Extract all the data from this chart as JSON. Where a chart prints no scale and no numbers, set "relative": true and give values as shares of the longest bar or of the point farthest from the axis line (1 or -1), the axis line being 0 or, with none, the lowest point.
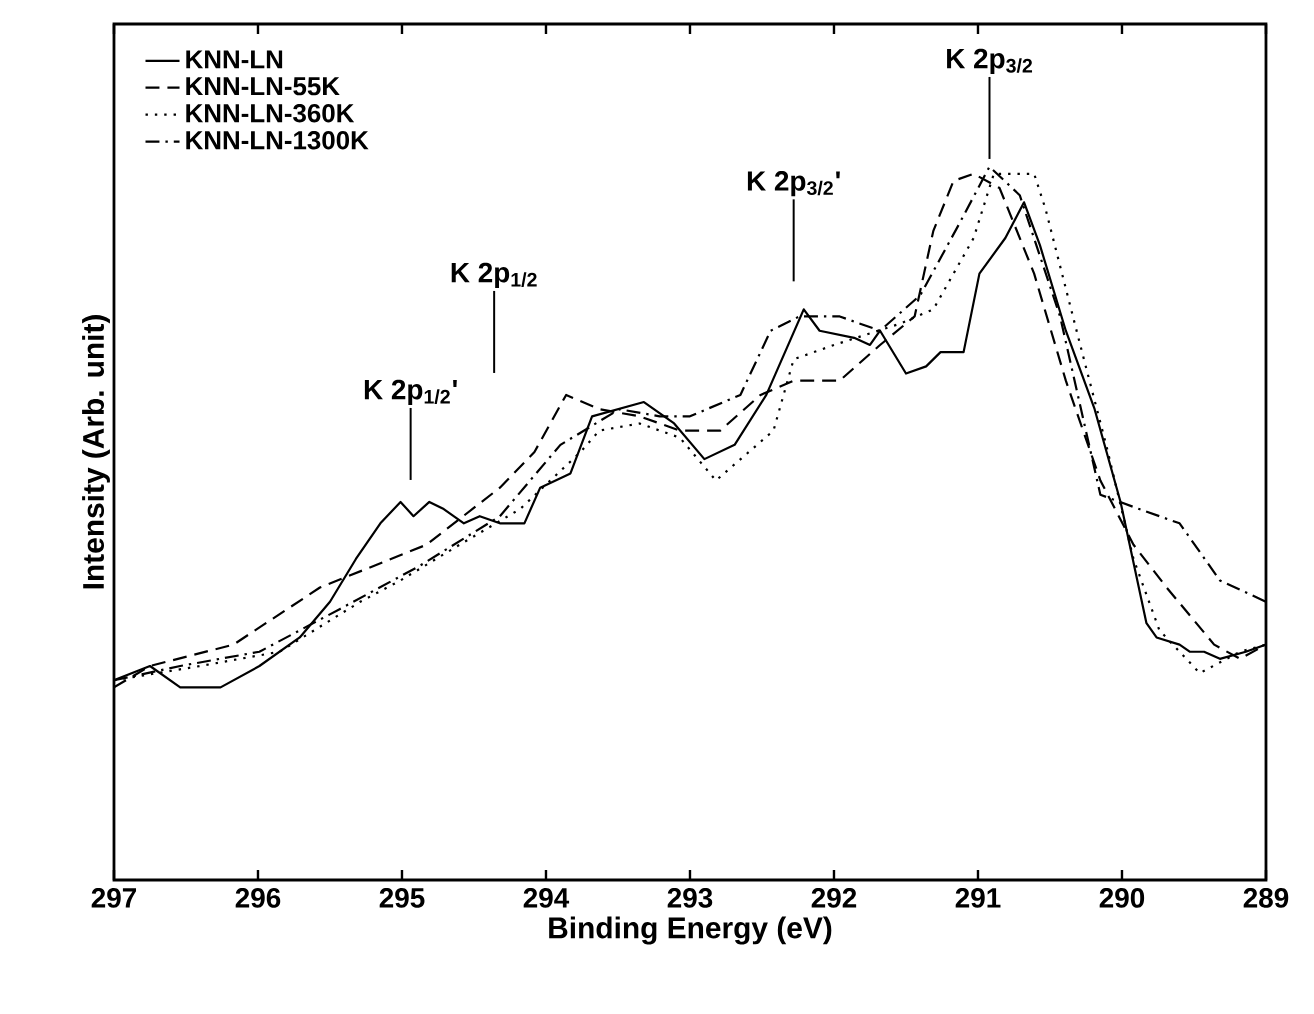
{
  "chart_data": {
    "type": "line",
    "relative": true,
    "xlabel": "Binding Energy (eV)",
    "ylabel": "Intensity (Arb. unit)",
    "xlim": [
      297,
      289
    ],
    "xticks": [
      297,
      296,
      295,
      294,
      293,
      292,
      291,
      290,
      289
    ],
    "legend": "top left",
    "series": [
      {
        "name": "KNN-LN",
        "color": "#000000",
        "line_style": "solid",
        "x": [
          297.0,
          296.75,
          296.54,
          296.26,
          295.99,
          295.71,
          295.5,
          295.32,
          295.15,
          295.01,
          294.92,
          294.81,
          294.71,
          294.57,
          294.46,
          294.32,
          294.15,
          294.04,
          293.83,
          293.68,
          293.32,
          293.11,
          292.9,
          292.69,
          292.47,
          292.21,
          292.1,
          291.86,
          291.75,
          291.68,
          291.5,
          291.36,
          291.26,
          291.1,
          290.99,
          290.81,
          290.68,
          290.57,
          290.39,
          290.19,
          290.01,
          289.83,
          289.76,
          289.6,
          289.53,
          289.43,
          289.32,
          289.14,
          289.0
        ],
        "values": [
          0.28,
          0.3,
          0.27,
          0.27,
          0.3,
          0.34,
          0.39,
          0.45,
          0.5,
          0.53,
          0.51,
          0.53,
          0.52,
          0.5,
          0.51,
          0.5,
          0.5,
          0.55,
          0.57,
          0.65,
          0.67,
          0.64,
          0.59,
          0.61,
          0.68,
          0.8,
          0.77,
          0.76,
          0.75,
          0.77,
          0.71,
          0.72,
          0.74,
          0.74,
          0.85,
          0.9,
          0.95,
          0.89,
          0.77,
          0.66,
          0.53,
          0.36,
          0.34,
          0.33,
          0.32,
          0.32,
          0.31,
          0.32,
          0.33
        ]
      },
      {
        "name": "KNN-LN-55K",
        "color": "#000000",
        "line_style": "dashed",
        "x": [
          297.0,
          296.75,
          296.17,
          295.57,
          294.83,
          294.32,
          294.08,
          293.86,
          293.63,
          293.35,
          293.07,
          292.79,
          292.51,
          292.28,
          291.96,
          291.68,
          291.44,
          291.31,
          291.17,
          291.03,
          290.85,
          290.61,
          290.39,
          290.15,
          289.92,
          289.69,
          289.36,
          289.18,
          289.0
        ],
        "values": [
          0.27,
          0.3,
          0.33,
          0.41,
          0.47,
          0.55,
          0.6,
          0.68,
          0.66,
          0.65,
          0.63,
          0.63,
          0.68,
          0.7,
          0.7,
          0.75,
          0.79,
          0.91,
          0.98,
          0.99,
          0.97,
          0.85,
          0.7,
          0.56,
          0.47,
          0.41,
          0.33,
          0.31,
          0.33
        ]
      },
      {
        "name": "KNN-LN-360K",
        "color": "#000000",
        "line_style": "dotted",
        "x": [
          297.0,
          296.4,
          295.85,
          295.29,
          295.01,
          294.6,
          294.18,
          293.97,
          293.76,
          293.63,
          293.35,
          293.07,
          292.82,
          292.42,
          292.28,
          292.0,
          291.54,
          291.31,
          291.03,
          290.89,
          290.75,
          290.61,
          290.53,
          290.29,
          290.11,
          289.92,
          289.74,
          289.46,
          289.18,
          289.0
        ],
        "values": [
          0.28,
          0.3,
          0.32,
          0.39,
          0.42,
          0.47,
          0.52,
          0.56,
          0.6,
          0.63,
          0.64,
          0.62,
          0.56,
          0.63,
          0.73,
          0.75,
          0.78,
          0.8,
          0.9,
          0.99,
          0.99,
          0.99,
          0.94,
          0.75,
          0.61,
          0.45,
          0.35,
          0.29,
          0.32,
          0.33
        ]
      },
      {
        "name": "KNN-LN-1300K",
        "color": "#000000",
        "line_style": "dashdot",
        "x": [
          297.0,
          296.54,
          295.99,
          295.43,
          294.88,
          294.32,
          293.9,
          293.49,
          293.21,
          293.0,
          292.65,
          292.44,
          292.24,
          291.96,
          291.68,
          291.4,
          291.13,
          290.92,
          290.71,
          290.43,
          290.15,
          289.88,
          289.6,
          289.32,
          289.0
        ],
        "values": [
          0.28,
          0.3,
          0.32,
          0.38,
          0.44,
          0.51,
          0.61,
          0.66,
          0.65,
          0.65,
          0.68,
          0.77,
          0.79,
          0.79,
          0.77,
          0.82,
          0.92,
          1.0,
          0.96,
          0.79,
          0.54,
          0.52,
          0.5,
          0.42,
          0.39
        ]
      }
    ],
    "annotations": [
      "K 2p$_{1/2}$'",
      "K 2p$_{1/2}$",
      "K 2p$_{3/2}$'",
      "K 2p$_{3/2}$"
    ]
  }
}
